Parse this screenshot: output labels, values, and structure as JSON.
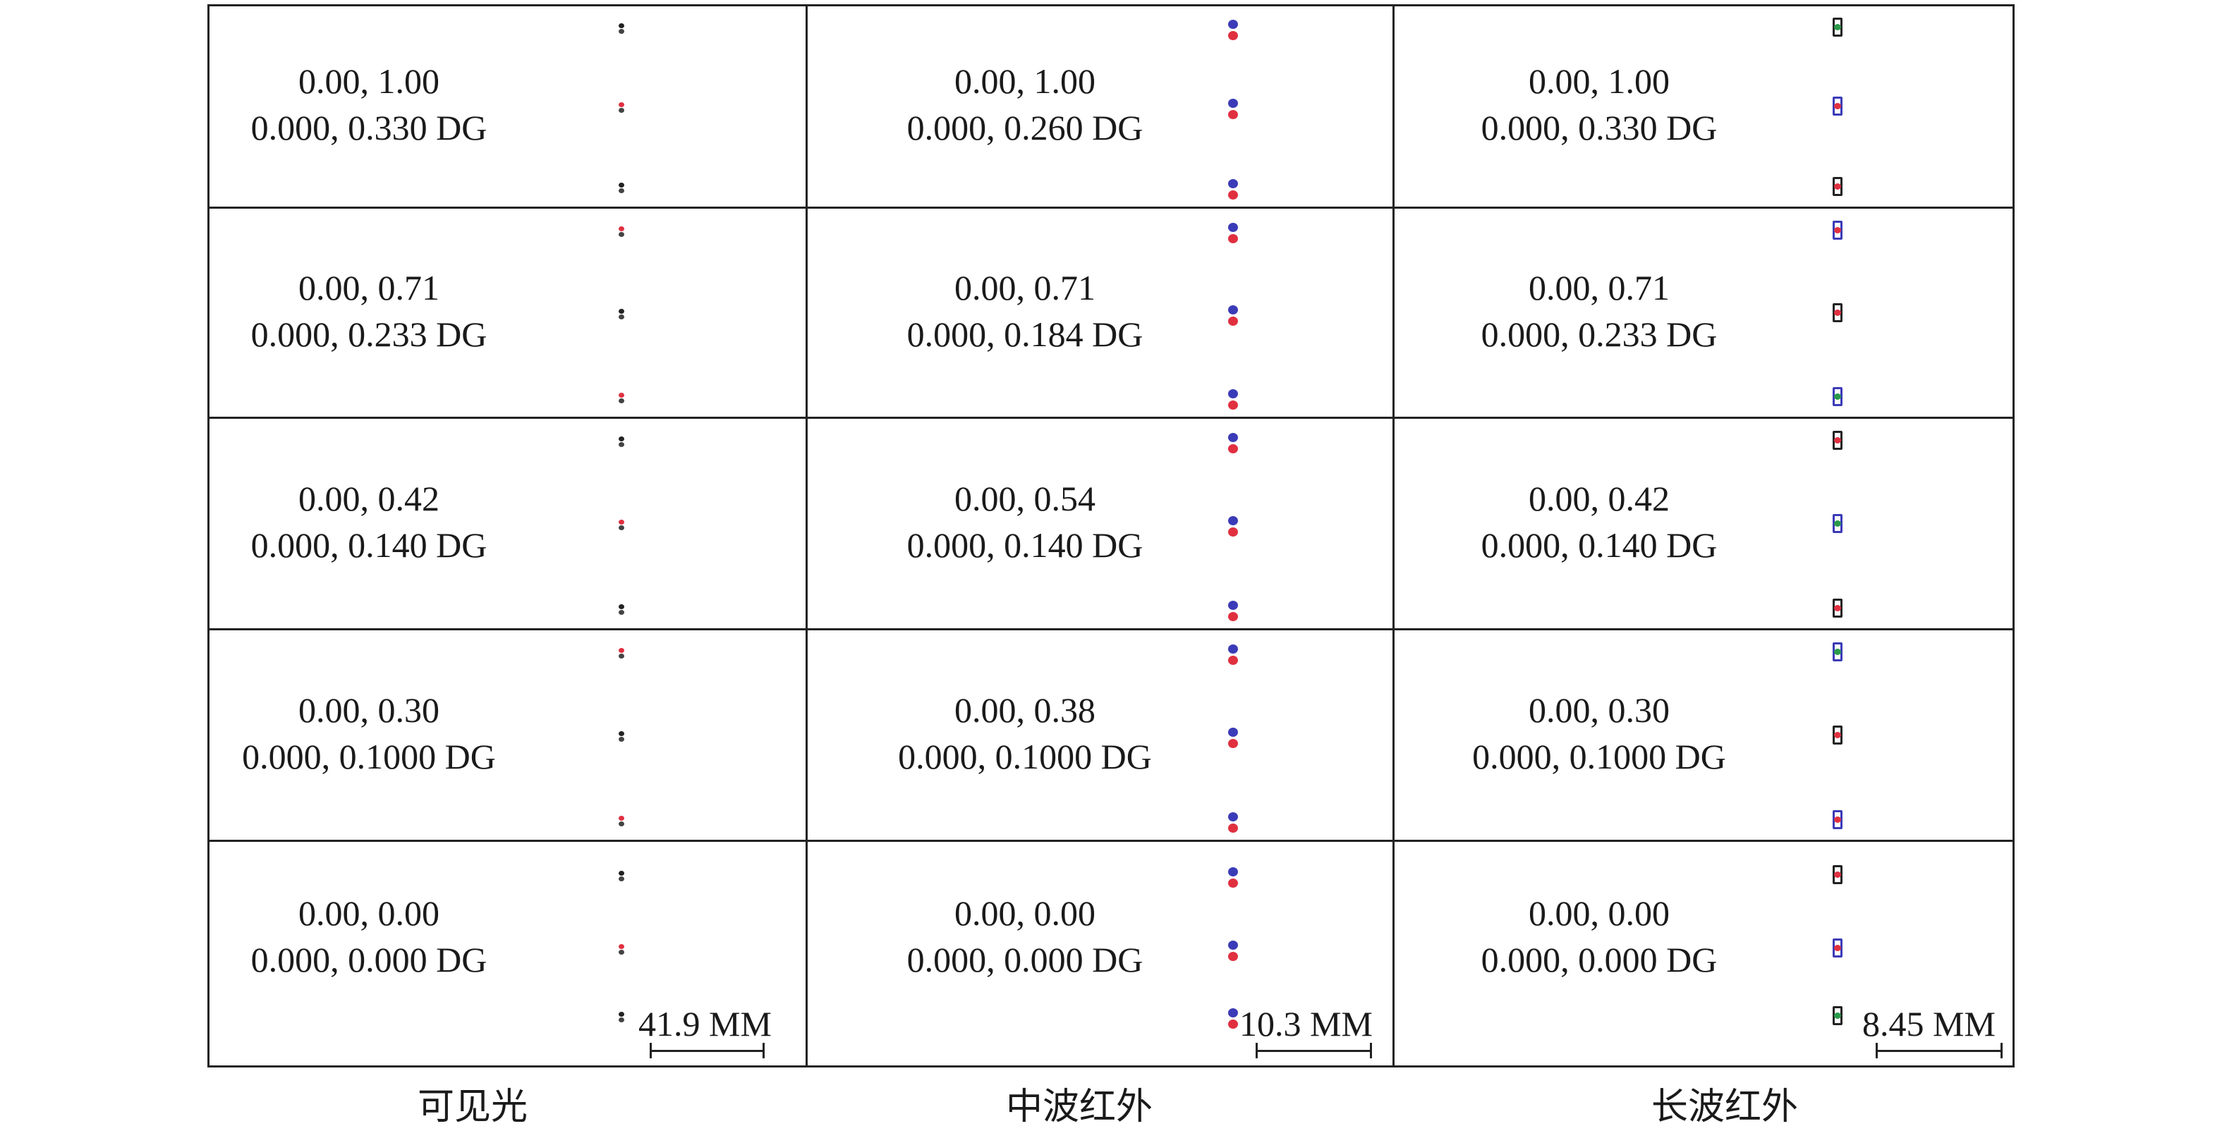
{
  "columns": [
    {
      "label": "可见光",
      "scale_label": "41.9 MM",
      "spot_style": "tiny",
      "rows": [
        {
          "field": "0.00, 1.00",
          "angle": "0.000, 0.330 DG"
        },
        {
          "field": "0.00, 0.71",
          "angle": "0.000, 0.233 DG"
        },
        {
          "field": "0.00, 0.42",
          "angle": "0.000, 0.140 DG"
        },
        {
          "field": "0.00, 0.30",
          "angle": "0.000, 0.1000 DG"
        },
        {
          "field": "0.00, 0.00",
          "angle": "0.000, 0.000 DG"
        }
      ]
    },
    {
      "label": "中波红外",
      "scale_label": "10.3 MM",
      "spot_style": "dots",
      "rows": [
        {
          "field": "0.00, 1.00",
          "angle": "0.000, 0.260 DG"
        },
        {
          "field": "0.00, 0.71",
          "angle": "0.000, 0.184 DG"
        },
        {
          "field": "0.00, 0.54",
          "angle": "0.000, 0.140 DG"
        },
        {
          "field": "0.00, 0.38",
          "angle": "0.000, 0.1000 DG"
        },
        {
          "field": "0.00, 0.00",
          "angle": "0.000, 0.000 DG"
        }
      ]
    },
    {
      "label": "长波红外",
      "scale_label": "8.45 MM",
      "spot_style": "squares",
      "rows": [
        {
          "field": "0.00, 1.00",
          "angle": "0.000, 0.330 DG"
        },
        {
          "field": "0.00, 0.71",
          "angle": "0.000, 0.233 DG"
        },
        {
          "field": "0.00, 0.42",
          "angle": "0.000, 0.140 DG"
        },
        {
          "field": "0.00, 0.30",
          "angle": "0.000, 0.1000 DG"
        },
        {
          "field": "0.00, 0.00",
          "angle": "0.000, 0.000 DG"
        }
      ]
    }
  ],
  "colors": {
    "line": "#222222",
    "blue": "#3b3bb8",
    "red": "#e03040",
    "green": "#2a9a4a",
    "dark": "#222222"
  }
}
